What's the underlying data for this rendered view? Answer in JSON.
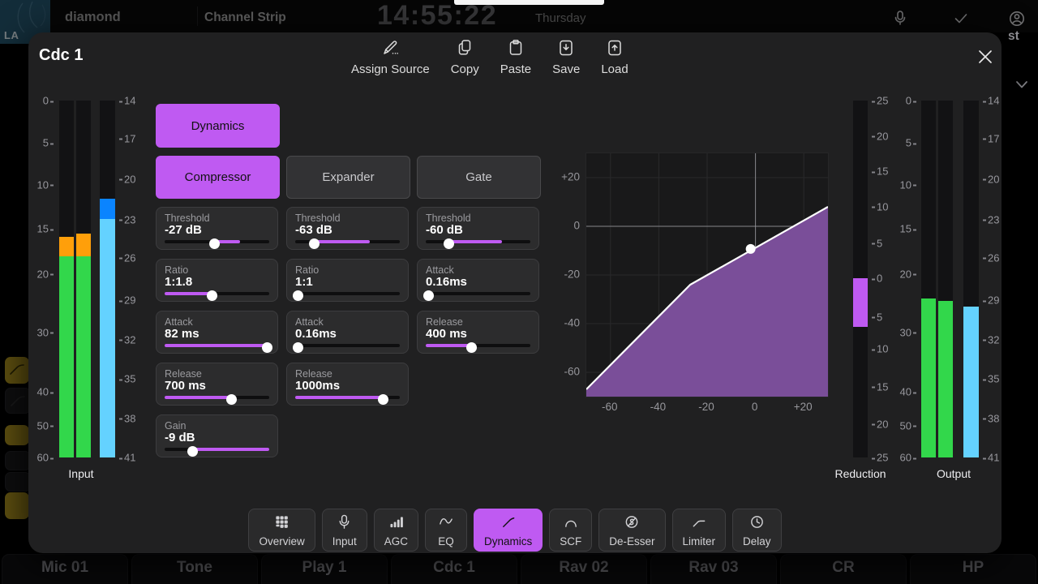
{
  "colors": {
    "accent": "#bf5af2",
    "purple": "#bf5af2",
    "graphFill": "#7a4e99",
    "green": "#32d74b",
    "orange": "#ff9f0a",
    "blueLight": "#64d2ff",
    "blueDark": "#0a84ff"
  },
  "background": {
    "logo_text": "LA",
    "brand": "diamond",
    "section_title": "Channel Strip",
    "clock": "14:55:22",
    "day": "Thursday",
    "rail_text": "st",
    "channels": [
      "Mic 01",
      "Tone",
      "Play 1",
      "Cdc 1",
      "Rav 02",
      "Rav 03",
      "CR",
      "HP"
    ],
    "side_buttons": [
      "olive",
      "dark",
      "olive",
      "dark",
      "dark",
      "olive"
    ]
  },
  "modal": {
    "title": "Cdc 1",
    "actions": [
      {
        "name": "assign-source",
        "icon": "pencil",
        "label": "Assign Source"
      },
      {
        "name": "copy",
        "icon": "copy-pages",
        "label": "Copy"
      },
      {
        "name": "paste",
        "icon": "clipboard",
        "label": "Paste"
      },
      {
        "name": "save",
        "icon": "save-download",
        "label": "Save"
      },
      {
        "name": "load",
        "icon": "load-upload",
        "label": "Load"
      }
    ],
    "dynamics_toggle": {
      "label": "Dynamics",
      "active": true
    },
    "modes": [
      {
        "label": "Compressor",
        "active": true
      },
      {
        "label": "Expander",
        "active": false
      },
      {
        "label": "Gate",
        "active": false
      }
    ],
    "sliders": {
      "compressor": [
        {
          "label": "Threshold",
          "value": "-27 dB",
          "knob": 48,
          "fill": [
            48,
            72
          ]
        },
        {
          "label": "Ratio",
          "value": "1:1.8",
          "knob": 45,
          "fill": [
            0,
            45
          ]
        },
        {
          "label": "Attack",
          "value": "82 ms",
          "knob": 98,
          "fill": [
            0,
            98
          ]
        },
        {
          "label": "Release",
          "value": "700 ms",
          "knob": 64,
          "fill": [
            0,
            64
          ]
        },
        {
          "label": "Gain",
          "value": "-9 dB",
          "knob": 27,
          "fill": [
            27,
            100
          ]
        }
      ],
      "expander": [
        {
          "label": "Threshold",
          "value": "-63 dB",
          "knob": 18,
          "fill": [
            18,
            71
          ]
        },
        {
          "label": "Ratio",
          "value": "1:1",
          "knob": 2.5,
          "fill": [
            0,
            0
          ]
        },
        {
          "label": "Attack",
          "value": "0.16ms",
          "knob": 2.5,
          "fill": [
            0,
            0
          ]
        },
        {
          "label": "Release",
          "value": "1000ms",
          "knob": 84,
          "fill": [
            0,
            84
          ]
        }
      ],
      "gate": [
        {
          "label": "Threshold",
          "value": "-60 dB",
          "knob": 22,
          "fill": [
            22,
            73
          ]
        },
        {
          "label": "Attack",
          "value": "0.16ms",
          "knob": 2.5,
          "fill": [
            0,
            0
          ]
        },
        {
          "label": "Release",
          "value": "400 ms",
          "knob": 44,
          "fill": [
            0,
            44
          ]
        }
      ]
    },
    "graph": {
      "type": "area",
      "x_range": [
        -70,
        30
      ],
      "y_range": [
        -70,
        30
      ],
      "x_ticks": [
        {
          "v": -60,
          "label": "-60"
        },
        {
          "v": -40,
          "label": "-40"
        },
        {
          "v": -20,
          "label": "-20"
        },
        {
          "v": 0,
          "label": "0"
        },
        {
          "v": 20,
          "label": "+20"
        }
      ],
      "y_ticks": [
        {
          "v": 20,
          "label": "+20"
        },
        {
          "v": 0,
          "label": "0"
        },
        {
          "v": -20,
          "label": "-20"
        },
        {
          "v": -40,
          "label": "-40"
        },
        {
          "v": -60,
          "label": "-60"
        }
      ],
      "curve": [
        [
          -70,
          -67
        ],
        [
          -27,
          -24
        ],
        [
          30,
          8
        ]
      ],
      "marker": [
        -2,
        -9.3
      ],
      "zero_lines": true
    },
    "meters": {
      "input": {
        "label": "Input",
        "left_scale": [
          {
            "v": "0",
            "p": 0
          },
          {
            "v": "5",
            "p": 11.9
          },
          {
            "v": "10",
            "p": 23.6
          },
          {
            "v": "15",
            "p": 36
          },
          {
            "v": "20",
            "p": 48.6
          },
          {
            "v": "30",
            "p": 64.9
          },
          {
            "v": "40",
            "p": 81.7
          },
          {
            "v": "50",
            "p": 91.1
          },
          {
            "v": "60",
            "p": 100
          }
        ],
        "right_scale": [
          {
            "v": "14",
            "p": 0
          },
          {
            "v": "17",
            "p": 10.6
          },
          {
            "v": "20",
            "p": 22
          },
          {
            "v": "23",
            "p": 33.3
          },
          {
            "v": "26",
            "p": 44
          },
          {
            "v": "29",
            "p": 56
          },
          {
            "v": "32",
            "p": 67
          },
          {
            "v": "35",
            "p": 78
          },
          {
            "v": "38",
            "p": 89
          },
          {
            "v": "41",
            "p": 100
          }
        ],
        "bars": [
          {
            "segments": [
              {
                "c": "orange",
                "a": 38.2,
                "b": 43.6
              },
              {
                "c": "green",
                "a": 43.6,
                "b": 100
              }
            ]
          },
          {
            "segments": [
              {
                "c": "orange",
                "a": 37.3,
                "b": 43.6
              },
              {
                "c": "green",
                "a": 43.6,
                "b": 100
              }
            ]
          },
          {
            "segments": [
              {
                "c": "blueDark",
                "a": 27.5,
                "b": 33.2
              },
              {
                "c": "blueLight",
                "a": 33.2,
                "b": 100
              }
            ]
          }
        ]
      },
      "reduction": {
        "label": "Reduction",
        "left_scale": [],
        "right_scale": [
          {
            "v": "25",
            "p": 0
          },
          {
            "v": "20",
            "p": 9.9
          },
          {
            "v": "15",
            "p": 19.8
          },
          {
            "v": "10",
            "p": 29.7
          },
          {
            "v": "5",
            "p": 39.9
          },
          {
            "v": "0",
            "p": 49.8
          },
          {
            "v": "5",
            "p": 60.6
          },
          {
            "v": "10",
            "p": 69.6
          },
          {
            "v": "15",
            "p": 80.2
          },
          {
            "v": "20",
            "p": 90.6
          },
          {
            "v": "25",
            "p": 100
          }
        ],
        "bars": [
          {
            "segments": [
              {
                "c": "purple",
                "a": 49.8,
                "b": 63.4
              }
            ]
          }
        ]
      },
      "output": {
        "label": "Output",
        "left_scale": [
          {
            "v": "0",
            "p": 0
          },
          {
            "v": "5",
            "p": 11.9
          },
          {
            "v": "10",
            "p": 23.6
          },
          {
            "v": "15",
            "p": 36
          },
          {
            "v": "20",
            "p": 48.6
          },
          {
            "v": "30",
            "p": 64.9
          },
          {
            "v": "40",
            "p": 81.7
          },
          {
            "v": "50",
            "p": 91.1
          },
          {
            "v": "60",
            "p": 100
          }
        ],
        "right_scale": [
          {
            "v": "14",
            "p": 0
          },
          {
            "v": "17",
            "p": 10.6
          },
          {
            "v": "20",
            "p": 22
          },
          {
            "v": "23",
            "p": 33.3
          },
          {
            "v": "26",
            "p": 44
          },
          {
            "v": "29",
            "p": 56
          },
          {
            "v": "32",
            "p": 67
          },
          {
            "v": "35",
            "p": 78
          },
          {
            "v": "38",
            "p": 89
          },
          {
            "v": "41",
            "p": 100
          }
        ],
        "bars": [
          {
            "segments": [
              {
                "c": "green",
                "a": 55.5,
                "b": 100
              }
            ]
          },
          {
            "segments": [
              {
                "c": "green",
                "a": 56.1,
                "b": 100
              }
            ]
          },
          {
            "segments": [
              {
                "c": "blueLight",
                "a": 57.7,
                "b": 100
              }
            ]
          }
        ]
      }
    },
    "tabs": [
      {
        "label": "Overview",
        "icon": "overview-grid",
        "active": false
      },
      {
        "label": "Input",
        "icon": "microphone",
        "active": false
      },
      {
        "label": "AGC",
        "icon": "level-bars",
        "active": false
      },
      {
        "label": "EQ",
        "icon": "eq-curve",
        "active": false
      },
      {
        "label": "Dynamics",
        "icon": "dynamics-curve",
        "active": true
      },
      {
        "label": "SCF",
        "icon": "filter-arch",
        "active": false
      },
      {
        "label": "De-Esser",
        "icon": "de-esser-s",
        "active": false
      },
      {
        "label": "Limiter",
        "icon": "limiter-curve",
        "active": false
      },
      {
        "label": "Delay",
        "icon": "clock",
        "active": false
      }
    ]
  }
}
